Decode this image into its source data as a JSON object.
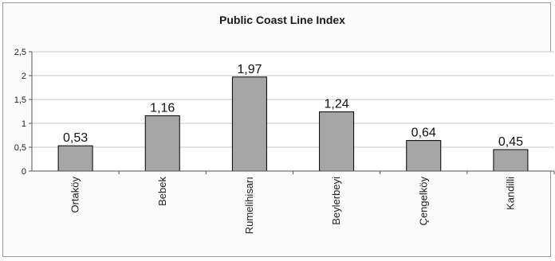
{
  "chart_data": {
    "type": "bar",
    "title": "Public Coast Line Index",
    "categories": [
      "Ortaköy",
      "Bebek",
      "Rumelihisarı",
      "Beylerbeyi",
      "Çengelköy",
      "Kandilli"
    ],
    "values": [
      0.53,
      1.16,
      1.97,
      1.24,
      0.64,
      0.45
    ],
    "data_labels": [
      "0,53",
      "1,16",
      "1,97",
      "1,24",
      "0,64",
      "0,45"
    ],
    "y_ticks": [
      "0",
      "0,5",
      "1",
      "1,5",
      "2",
      "2,5"
    ],
    "ylim": [
      0,
      2.5
    ],
    "grid": true,
    "legend": "none",
    "colors": {
      "bar_fill": "#a6a6a6",
      "bar_stroke": "#000000",
      "grid": "#c8c8c8",
      "plot_background": "#ffffff"
    }
  }
}
